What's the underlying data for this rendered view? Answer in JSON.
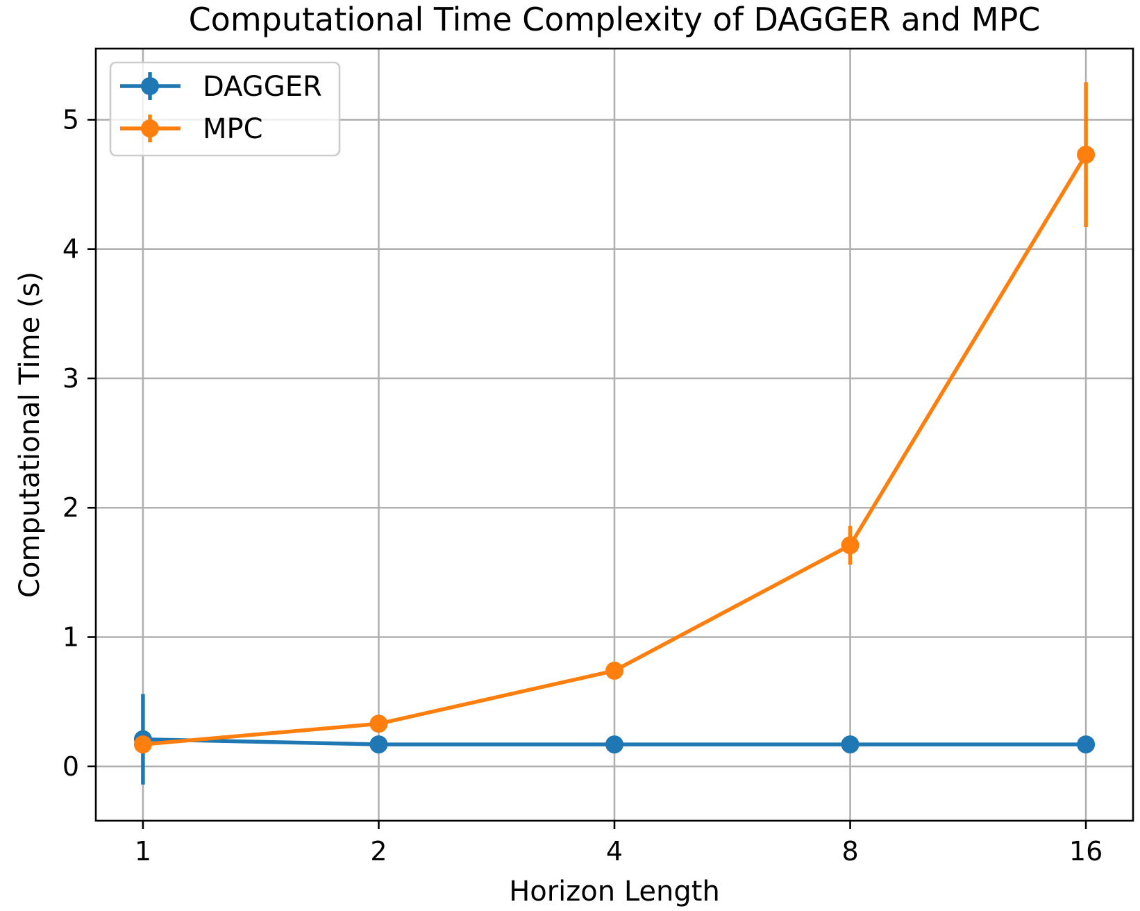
{
  "chart_data": {
    "type": "line",
    "title": "Computational Time Complexity of DAGGER and MPC",
    "xlabel": "Horizon Length",
    "ylabel": "Computational Time (s)",
    "x_scale": "log2",
    "x": [
      1,
      2,
      4,
      8,
      16
    ],
    "x_tick_labels": [
      "1",
      "2",
      "4",
      "8",
      "16"
    ],
    "y_ticks": [
      0,
      1,
      2,
      3,
      4,
      5
    ],
    "y_tick_labels": [
      "0",
      "1",
      "2",
      "3",
      "4",
      "5"
    ],
    "ylim": [
      -0.42,
      5.55
    ],
    "grid": true,
    "legend_position": "top-left",
    "series": [
      {
        "name": "DAGGER",
        "color": "#1f77b4",
        "values": [
          0.21,
          0.17,
          0.17,
          0.17,
          0.17
        ],
        "error": [
          0.35,
          0.0,
          0.0,
          0.0,
          0.0
        ]
      },
      {
        "name": "MPC",
        "color": "#ff7f0e",
        "values": [
          0.17,
          0.33,
          0.74,
          1.71,
          4.73
        ],
        "error": [
          0.0,
          0.0,
          0.0,
          0.15,
          0.56
        ]
      }
    ]
  }
}
